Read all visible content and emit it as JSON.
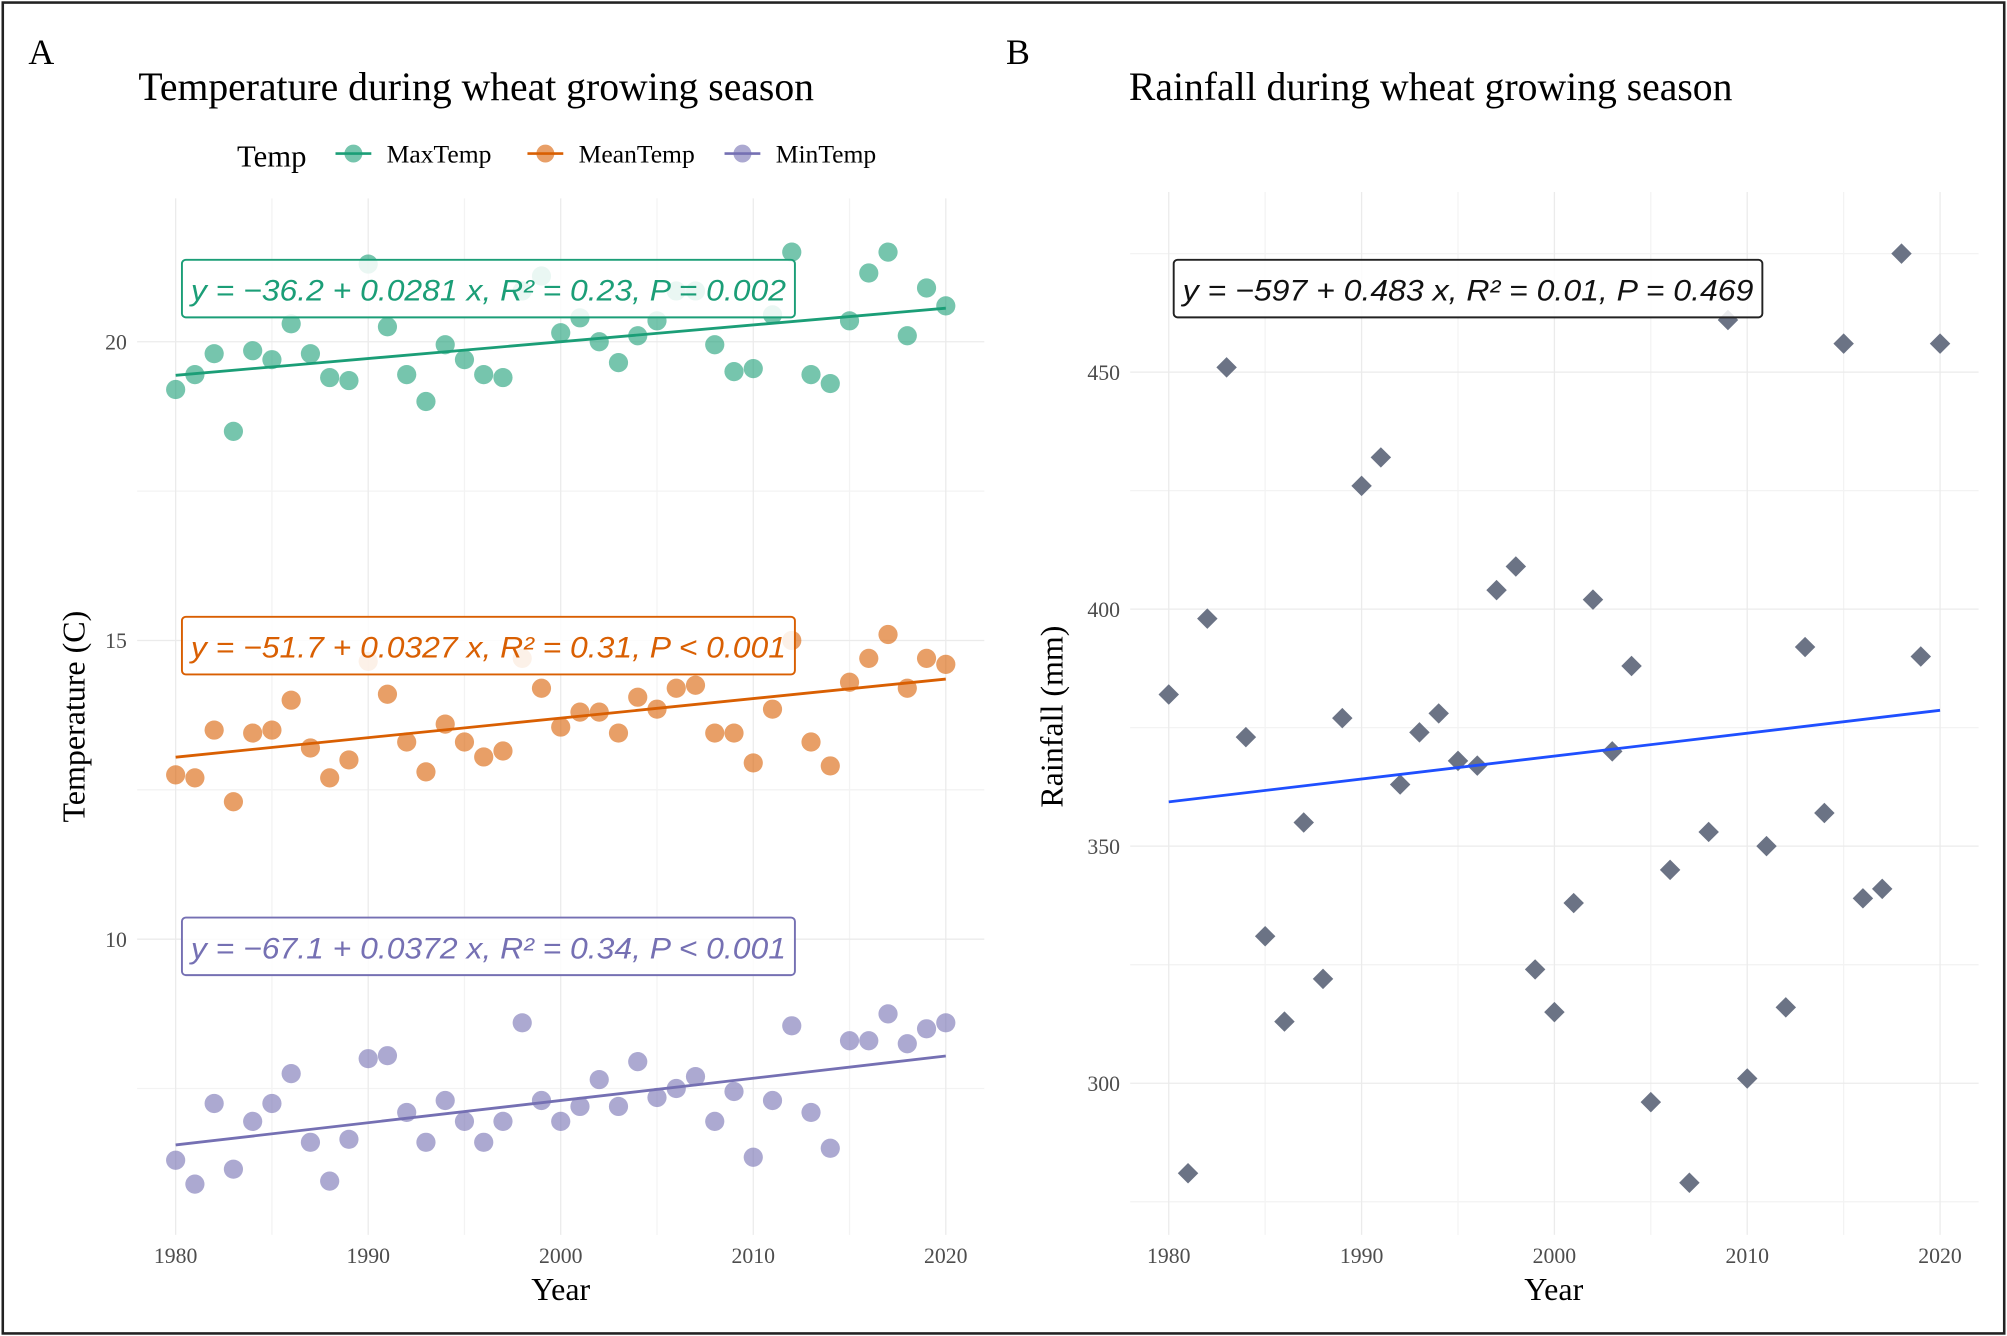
{
  "chart_data": [
    {
      "type": "scatter",
      "panel_letter": "A",
      "title": "Temperature during wheat growing season",
      "xlabel": "Year",
      "ylabel": "Temperature (C)",
      "xlim": [
        1978,
        2022
      ],
      "ylim": [
        5.05,
        22.4
      ],
      "xticks": [
        "1980",
        "1990",
        "2000",
        "2010",
        "2020"
      ],
      "yticks": [
        "10",
        "15",
        "20"
      ],
      "grid": true,
      "legend": {
        "title": "Temp",
        "position": "top",
        "entries": [
          "MaxTemp",
          "MeanTemp",
          "MinTemp"
        ]
      },
      "x": [
        1980,
        1981,
        1982,
        1983,
        1984,
        1985,
        1986,
        1987,
        1988,
        1989,
        1990,
        1991,
        1992,
        1993,
        1994,
        1995,
        1996,
        1997,
        1998,
        1999,
        2000,
        2001,
        2002,
        2003,
        2004,
        2005,
        2006,
        2007,
        2008,
        2009,
        2010,
        2011,
        2012,
        2013,
        2014,
        2015,
        2016,
        2017,
        2018,
        2019,
        2020
      ],
      "series": [
        {
          "name": "MaxTemp",
          "color": "#1b9e77",
          "values": [
            19.2,
            19.45,
            19.8,
            18.5,
            19.85,
            19.7,
            20.3,
            19.8,
            19.4,
            19.35,
            21.3,
            20.25,
            19.45,
            19.0,
            19.95,
            19.7,
            19.45,
            19.4,
            20.85,
            21.1,
            20.15,
            20.4,
            20.0,
            19.65,
            20.1,
            20.35,
            20.85,
            20.85,
            19.95,
            19.5,
            19.55,
            20.45,
            21.5,
            19.45,
            19.3,
            20.35,
            21.15,
            21.5,
            20.1,
            20.9,
            20.6
          ],
          "fit": {
            "intercept": -36.2,
            "slope": 0.0281
          },
          "label": "y = −36.2 + 0.0281 x, R² = 0.23, P = 0.002"
        },
        {
          "name": "MeanTemp",
          "color": "#d95f02",
          "values": [
            12.75,
            12.7,
            13.5,
            12.3,
            13.45,
            13.5,
            14.0,
            13.2,
            12.7,
            13.0,
            14.65,
            14.1,
            13.3,
            12.8,
            13.6,
            13.3,
            13.05,
            13.15,
            14.7,
            14.2,
            13.55,
            13.8,
            13.8,
            13.45,
            14.05,
            13.85,
            14.2,
            14.25,
            13.45,
            13.45,
            12.95,
            13.85,
            15.0,
            13.3,
            12.9,
            14.3,
            14.7,
            15.1,
            14.2,
            14.7,
            14.6
          ],
          "fit": {
            "intercept": -51.7,
            "slope": 0.0327
          },
          "label": "y = −51.7 + 0.0327 x, R² = 0.31, P < 0.001"
        },
        {
          "name": "MinTemp",
          "color": "#7570b3",
          "values": [
            6.3,
            5.9,
            7.25,
            6.15,
            6.95,
            7.25,
            7.75,
            6.6,
            5.95,
            6.65,
            8.0,
            8.05,
            7.1,
            6.6,
            7.3,
            6.95,
            6.6,
            6.95,
            8.6,
            7.3,
            6.95,
            7.2,
            7.65,
            7.2,
            7.95,
            7.35,
            7.5,
            7.7,
            6.95,
            7.45,
            6.35,
            7.3,
            8.55,
            7.1,
            6.5,
            8.3,
            8.3,
            8.75,
            8.25,
            8.5,
            8.6
          ],
          "fit": {
            "intercept": -67.1,
            "slope": 0.0372
          },
          "label": "y = −67.1 + 0.0372 x, R² = 0.34, P < 0.001"
        }
      ]
    },
    {
      "type": "scatter",
      "panel_letter": "B",
      "title": "Rainfall during wheat growing season",
      "xlabel": "Year",
      "ylabel": "Rainfall (mm)",
      "xlim": [
        1978,
        2022
      ],
      "ylim": [
        268,
        488
      ],
      "xticks": [
        "1980",
        "1990",
        "2000",
        "2010",
        "2020"
      ],
      "yticks": [
        "300",
        "350",
        "400",
        "450"
      ],
      "grid": true,
      "x": [
        1980,
        1981,
        1982,
        1983,
        1984,
        1985,
        1986,
        1987,
        1988,
        1989,
        1990,
        1991,
        1992,
        1993,
        1994,
        1995,
        1996,
        1997,
        1998,
        1999,
        2000,
        2001,
        2002,
        2003,
        2004,
        2005,
        2006,
        2007,
        2008,
        2009,
        2010,
        2011,
        2012,
        2013,
        2014,
        2015,
        2016,
        2017,
        2018,
        2019,
        2020
      ],
      "series": [
        {
          "color": "#6b7385",
          "line_color": "#1f4fff",
          "values": [
            382,
            281,
            398,
            451,
            373,
            331,
            313,
            355,
            322,
            377,
            426,
            432,
            363,
            374,
            378,
            368,
            367,
            404,
            409,
            324,
            315,
            338,
            402,
            370,
            388,
            296,
            345,
            279,
            353,
            461,
            301,
            350,
            316,
            392,
            357,
            456,
            339,
            341,
            475,
            390,
            456
          ],
          "fit": {
            "intercept": -597,
            "slope": 0.483
          },
          "label": "y = −597 + 0.483 x, R² = 0.01, P = 0.469"
        }
      ]
    }
  ]
}
